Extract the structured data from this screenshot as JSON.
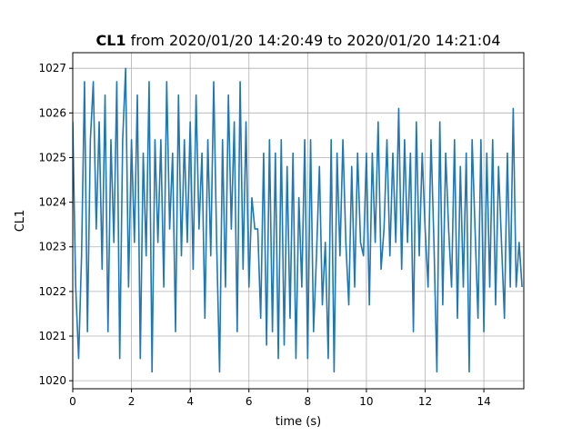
{
  "chart_data": {
    "type": "line",
    "title_bold": "CL1",
    "title": "from 2020/01/20 14:20:49 to 2020/01/20 14:21:04",
    "xlabel": "time (s)",
    "ylabel": "CL1",
    "color": "#1f77b4",
    "grid": true,
    "xlim": [
      0,
      15.36
    ],
    "ylim": [
      1019.82,
      1027.35
    ],
    "xticks": [
      0,
      2,
      4,
      6,
      8,
      10,
      12,
      14
    ],
    "yticks": [
      1020,
      1021,
      1022,
      1023,
      1024,
      1025,
      1026,
      1027
    ],
    "x": [
      0,
      0.1,
      0.2,
      0.3,
      0.4,
      0.5,
      0.6,
      0.7,
      0.8,
      0.9,
      1,
      1.1,
      1.2,
      1.3,
      1.4,
      1.5,
      1.6,
      1.7,
      1.8,
      1.9,
      2,
      2.1,
      2.2,
      2.3,
      2.4,
      2.5,
      2.6,
      2.7,
      2.8,
      2.9,
      3,
      3.1,
      3.2,
      3.3,
      3.4,
      3.5,
      3.6,
      3.7,
      3.8,
      3.9,
      4,
      4.1,
      4.2,
      4.3,
      4.4,
      4.5,
      4.6,
      4.7,
      4.8,
      4.9,
      5,
      5.1,
      5.2,
      5.3,
      5.4,
      5.5,
      5.6,
      5.7,
      5.8,
      5.9,
      6,
      6.1,
      6.2,
      6.3,
      6.4,
      6.5,
      6.6,
      6.7,
      6.8,
      6.9,
      7,
      7.1,
      7.2,
      7.3,
      7.4,
      7.5,
      7.6,
      7.7,
      7.8,
      7.9,
      8,
      8.1,
      8.2,
      8.3,
      8.4,
      8.5,
      8.6,
      8.7,
      8.8,
      8.9,
      9,
      9.1,
      9.2,
      9.3,
      9.4,
      9.5,
      9.6,
      9.7,
      9.8,
      9.9,
      10,
      10.1,
      10.2,
      10.3,
      10.4,
      10.5,
      10.6,
      10.7,
      10.8,
      10.9,
      11,
      11.1,
      11.2,
      11.3,
      11.4,
      11.5,
      11.6,
      11.7,
      11.8,
      11.9,
      12,
      12.1,
      12.2,
      12.3,
      12.4,
      12.5,
      12.6,
      12.7,
      12.8,
      12.9,
      13,
      13.1,
      13.2,
      13.3,
      13.4,
      13.5,
      13.6,
      13.7,
      13.8,
      13.9,
      14,
      14.1,
      14.2,
      14.3,
      14.4,
      14.5,
      14.6,
      14.7,
      14.8,
      14.9,
      15,
      15.1,
      15.2,
      15.3
    ],
    "values": [
      1025.8,
      1022.1,
      1020.5,
      1022.8,
      1026.7,
      1021.1,
      1025.4,
      1026.7,
      1023.4,
      1025.8,
      1022.5,
      1026.4,
      1021.1,
      1025.4,
      1023.1,
      1026.7,
      1020.5,
      1025.4,
      1027.0,
      1022.1,
      1025.4,
      1023.1,
      1026.4,
      1020.5,
      1025.1,
      1022.8,
      1026.7,
      1020.2,
      1025.4,
      1023.1,
      1025.4,
      1022.1,
      1026.7,
      1023.4,
      1025.1,
      1021.1,
      1026.4,
      1022.8,
      1025.4,
      1023.1,
      1025.8,
      1022.5,
      1026.4,
      1023.4,
      1025.1,
      1021.4,
      1025.4,
      1022.8,
      1026.7,
      1023.1,
      1020.2,
      1025.4,
      1022.1,
      1026.4,
      1023.4,
      1025.8,
      1021.1,
      1026.7,
      1022.5,
      1025.8,
      1022.1,
      1024.1,
      1023.4,
      1023.4,
      1021.4,
      1025.1,
      1020.8,
      1025.4,
      1021.1,
      1025.1,
      1020.5,
      1025.4,
      1020.8,
      1024.8,
      1021.4,
      1025.1,
      1020.5,
      1024.1,
      1022.1,
      1025.4,
      1020.5,
      1025.4,
      1021.1,
      1022.8,
      1024.8,
      1021.7,
      1023.1,
      1020.5,
      1025.4,
      1020.2,
      1025.1,
      1022.8,
      1025.4,
      1023.1,
      1021.7,
      1024.8,
      1022.1,
      1025.1,
      1023.1,
      1022.8,
      1025.1,
      1021.7,
      1025.1,
      1023.1,
      1025.8,
      1022.5,
      1023.4,
      1025.4,
      1022.8,
      1025.1,
      1023.1,
      1026.1,
      1022.5,
      1025.4,
      1023.1,
      1025.1,
      1021.1,
      1025.8,
      1022.8,
      1025.1,
      1023.4,
      1022.1,
      1025.4,
      1023.1,
      1020.2,
      1025.8,
      1021.7,
      1025.1,
      1023.4,
      1022.1,
      1025.4,
      1021.4,
      1024.8,
      1022.1,
      1025.1,
      1020.2,
      1025.4,
      1023.4,
      1021.4,
      1025.4,
      1021.1,
      1025.1,
      1022.1,
      1025.4,
      1021.7,
      1024.8,
      1023.1,
      1021.4,
      1025.1,
      1022.1,
      1026.1,
      1022.1,
      1023.1,
      1022.1
    ]
  }
}
